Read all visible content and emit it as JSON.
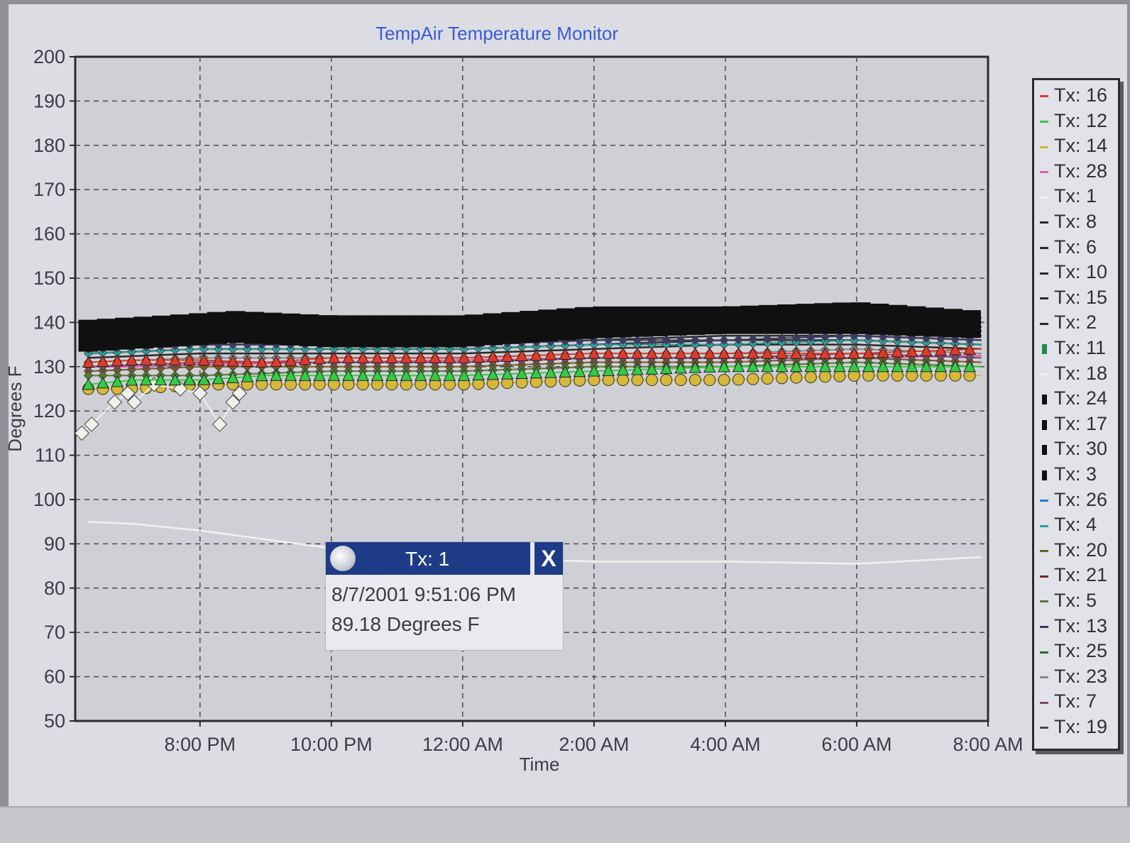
{
  "chart_data": {
    "type": "scatter",
    "title": "TempAir Temperature Monitor",
    "xlabel": "Time",
    "ylabel": "Degrees F",
    "x_ticks": [
      "8:00 PM",
      "10:00 PM",
      "12:00 AM",
      "2:00 AM",
      "4:00 AM",
      "6:00 AM",
      "8:00 AM"
    ],
    "x_range_hours": [
      18.1,
      32.0
    ],
    "y_ticks": [
      200,
      190,
      180,
      170,
      160,
      150,
      140,
      130,
      120,
      110,
      100,
      90,
      80,
      70,
      60,
      50
    ],
    "ylim": [
      50,
      200
    ],
    "grid": true,
    "legend_position": "right",
    "series": [
      {
        "name": "Tx: 16",
        "color": "#e03a2a",
        "marker": "triangle",
        "values": [
          [
            18.3,
            131
          ],
          [
            19.0,
            131.5
          ],
          [
            20.0,
            131.5
          ],
          [
            21.0,
            131
          ],
          [
            22.0,
            132
          ],
          [
            24.0,
            132
          ],
          [
            26.0,
            133
          ],
          [
            28.0,
            133
          ],
          [
            30.0,
            133
          ],
          [
            31.9,
            134
          ]
        ]
      },
      {
        "name": "Tx: 12",
        "color": "#33cc44",
        "marker": "triangle",
        "values": [
          [
            18.3,
            126
          ],
          [
            19.0,
            127
          ],
          [
            20.0,
            127
          ],
          [
            21.0,
            128
          ],
          [
            22.0,
            128
          ],
          [
            24.0,
            128
          ],
          [
            26.0,
            129
          ],
          [
            28.0,
            130
          ],
          [
            30.0,
            130
          ],
          [
            31.9,
            130
          ]
        ]
      },
      {
        "name": "Tx: 14",
        "color": "#d8b838",
        "marker": "circle",
        "values": [
          [
            18.3,
            125
          ],
          [
            19.0,
            125
          ],
          [
            20.0,
            126
          ],
          [
            21.0,
            126
          ],
          [
            22.0,
            126
          ],
          [
            24.0,
            126
          ],
          [
            26.0,
            127
          ],
          [
            28.0,
            127
          ],
          [
            30.0,
            128
          ],
          [
            31.9,
            128
          ]
        ]
      },
      {
        "name": "Tx: 28",
        "color": "#e060b0",
        "marker": "line",
        "values": [
          [
            18.3,
            130
          ],
          [
            19.0,
            130
          ],
          [
            20.0,
            130.5
          ],
          [
            22.0,
            131
          ],
          [
            24.0,
            131.5
          ],
          [
            26.0,
            132
          ],
          [
            28.0,
            132
          ],
          [
            30.0,
            132
          ],
          [
            31.9,
            132.5
          ]
        ]
      },
      {
        "name": "Tx: 1",
        "color": "#f2f2ec",
        "marker": "line",
        "values": [
          [
            18.3,
            95
          ],
          [
            19.0,
            94.5
          ],
          [
            20.0,
            93
          ],
          [
            21.0,
            91
          ],
          [
            22.0,
            89
          ],
          [
            24.0,
            87
          ],
          [
            26.0,
            86
          ],
          [
            28.0,
            86
          ],
          [
            30.0,
            85.5
          ],
          [
            31.9,
            87
          ]
        ]
      },
      {
        "name": "Tx: 8",
        "color": "#2a2a2a",
        "marker": "line",
        "values": [
          [
            18.3,
            136
          ],
          [
            20.0,
            137
          ],
          [
            22.0,
            137
          ],
          [
            24.0,
            137
          ],
          [
            26.0,
            138
          ],
          [
            28.0,
            139
          ],
          [
            30.0,
            139
          ],
          [
            31.9,
            138
          ]
        ]
      },
      {
        "name": "Tx: 6",
        "color": "#2a2a2a",
        "marker": "line",
        "values": [
          [
            18.3,
            135
          ],
          [
            20.0,
            136
          ],
          [
            22.0,
            136
          ],
          [
            24.0,
            136
          ],
          [
            26.0,
            137
          ],
          [
            28.0,
            138
          ],
          [
            30.0,
            138
          ],
          [
            31.9,
            137
          ]
        ]
      },
      {
        "name": "Tx: 10",
        "color": "#2a2a2a",
        "marker": "line",
        "values": [
          [
            18.3,
            134
          ],
          [
            20.0,
            135
          ],
          [
            22.0,
            135
          ],
          [
            24.0,
            135
          ],
          [
            26.0,
            136
          ],
          [
            28.0,
            137
          ],
          [
            30.0,
            137
          ],
          [
            31.9,
            136
          ]
        ]
      },
      {
        "name": "Tx: 15",
        "color": "#2a2a2a",
        "marker": "line",
        "values": [
          [
            18.3,
            133
          ],
          [
            20.0,
            134
          ],
          [
            22.0,
            134
          ],
          [
            24.0,
            134
          ],
          [
            26.0,
            135
          ],
          [
            28.0,
            136
          ],
          [
            30.0,
            136
          ],
          [
            31.9,
            135
          ]
        ]
      },
      {
        "name": "Tx: 2",
        "color": "#2a2a2a",
        "marker": "line",
        "values": [
          [
            18.3,
            132
          ],
          [
            20.0,
            133
          ],
          [
            22.0,
            133
          ],
          [
            24.0,
            133
          ],
          [
            26.0,
            134
          ],
          [
            28.0,
            135
          ],
          [
            30.0,
            135
          ],
          [
            31.9,
            134
          ]
        ]
      },
      {
        "name": "Tx: 11",
        "color": "#1f8a4a",
        "marker": "square",
        "values": [
          [
            18.3,
            138
          ],
          [
            19.0,
            139.5
          ],
          [
            20.0,
            139
          ],
          [
            22.0,
            139
          ],
          [
            24.0,
            139
          ],
          [
            26.0,
            140
          ],
          [
            28.0,
            140
          ],
          [
            30.0,
            140
          ],
          [
            31.9,
            139
          ]
        ]
      },
      {
        "name": "Tx: 18",
        "color": "#f0f0ea",
        "marker": "diamond",
        "values": [
          [
            18.2,
            115
          ],
          [
            18.35,
            117
          ],
          [
            18.7,
            122
          ],
          [
            18.9,
            124
          ],
          [
            19.0,
            122
          ],
          [
            19.3,
            126
          ],
          [
            19.7,
            125
          ],
          [
            20.0,
            124
          ],
          [
            20.3,
            117
          ],
          [
            20.5,
            122
          ],
          [
            20.6,
            124
          ]
        ]
      },
      {
        "name": "Tx: 24",
        "color": "#101010",
        "marker": "square",
        "values": [
          [
            18.3,
            137
          ],
          [
            19.5,
            138
          ],
          [
            20.5,
            139
          ],
          [
            22.0,
            138
          ],
          [
            24.0,
            138
          ],
          [
            26.0,
            140
          ],
          [
            28.0,
            141
          ],
          [
            30.0,
            141
          ],
          [
            31.9,
            140
          ]
        ]
      },
      {
        "name": "Tx: 17",
        "color": "#101010",
        "marker": "square",
        "values": [
          [
            18.3,
            135
          ],
          [
            19.5,
            136
          ],
          [
            20.5,
            137
          ],
          [
            22.0,
            136
          ],
          [
            24.0,
            136
          ],
          [
            26.0,
            138
          ],
          [
            28.0,
            139
          ],
          [
            30.0,
            139
          ],
          [
            31.9,
            138
          ]
        ]
      },
      {
        "name": "Tx: 30",
        "color": "#101010",
        "marker": "square",
        "values": [
          [
            18.3,
            139
          ],
          [
            19.5,
            140
          ],
          [
            20.5,
            141
          ],
          [
            22.0,
            140
          ],
          [
            24.0,
            140
          ],
          [
            26.0,
            142
          ],
          [
            28.0,
            142
          ],
          [
            30.0,
            143
          ],
          [
            31.9,
            141
          ]
        ]
      },
      {
        "name": "Tx: 3",
        "color": "#101010",
        "marker": "square",
        "values": [
          [
            18.3,
            136
          ],
          [
            19.5,
            137
          ],
          [
            20.5,
            138
          ],
          [
            22.0,
            137
          ],
          [
            24.0,
            137
          ],
          [
            26.0,
            139
          ],
          [
            28.0,
            140
          ],
          [
            30.0,
            140
          ],
          [
            31.9,
            139
          ]
        ]
      },
      {
        "name": "Tx: 26",
        "color": "#2a78d8",
        "marker": "diamond",
        "values": [
          [
            26.0,
            139
          ],
          [
            27.0,
            139
          ],
          [
            28.0,
            139
          ],
          [
            29.0,
            139.5
          ],
          [
            30.0,
            139.5
          ],
          [
            31.0,
            140
          ]
        ]
      },
      {
        "name": "Tx: 4",
        "color": "#2aa0a0",
        "marker": "diamond",
        "values": [
          [
            18.3,
            133
          ],
          [
            20.0,
            134
          ],
          [
            22.0,
            134
          ],
          [
            24.0,
            134
          ],
          [
            26.0,
            135
          ],
          [
            28.0,
            135
          ],
          [
            30.0,
            136
          ],
          [
            31.9,
            135
          ]
        ]
      },
      {
        "name": "Tx: 20",
        "color": "#7a5a20",
        "marker": "diamond",
        "values": [
          [
            18.3,
            129
          ],
          [
            20.0,
            130
          ],
          [
            22.0,
            130
          ],
          [
            24.0,
            130
          ],
          [
            26.0,
            131
          ],
          [
            28.0,
            131
          ],
          [
            30.0,
            132
          ],
          [
            31.9,
            131
          ]
        ]
      },
      {
        "name": "Tx: 21",
        "color": "#6a2a30",
        "marker": "diamond",
        "values": [
          [
            18.3,
            137
          ],
          [
            20.0,
            138
          ],
          [
            22.0,
            137
          ],
          [
            24.0,
            137
          ],
          [
            26.0,
            139
          ],
          [
            28.0,
            139
          ],
          [
            30.0,
            139
          ],
          [
            31.9,
            139
          ]
        ]
      },
      {
        "name": "Tx: 5",
        "color": "#5a7a30",
        "marker": "diamond",
        "values": [
          [
            18.3,
            128
          ],
          [
            20.0,
            128
          ],
          [
            22.0,
            129
          ],
          [
            24.0,
            129
          ],
          [
            26.0,
            130
          ],
          [
            28.0,
            130
          ],
          [
            30.0,
            131
          ],
          [
            31.9,
            130
          ]
        ]
      },
      {
        "name": "Tx: 13",
        "color": "#3a3a6a",
        "marker": "diamond",
        "values": [
          [
            18.3,
            134
          ],
          [
            20.0,
            135
          ],
          [
            22.0,
            135
          ],
          [
            24.0,
            135
          ],
          [
            26.0,
            136
          ],
          [
            28.0,
            136
          ],
          [
            30.0,
            137
          ],
          [
            31.9,
            136
          ]
        ]
      },
      {
        "name": "Tx: 25",
        "color": "#2a6a2a",
        "marker": "diamond",
        "values": [
          [
            18.3,
            139
          ],
          [
            19.0,
            140
          ],
          [
            20.0,
            140
          ],
          [
            22.0,
            140
          ],
          [
            24.0,
            140
          ],
          [
            26.0,
            141
          ],
          [
            28.0,
            141
          ],
          [
            30.0,
            141
          ],
          [
            31.9,
            140
          ]
        ]
      },
      {
        "name": "Tx: 23",
        "color": "#888888",
        "marker": "diamond",
        "values": [
          [
            18.3,
            131
          ],
          [
            20.0,
            132
          ],
          [
            22.0,
            132
          ],
          [
            24.0,
            132
          ],
          [
            26.0,
            133
          ],
          [
            28.0,
            133
          ],
          [
            30.0,
            134
          ],
          [
            31.9,
            133
          ]
        ]
      },
      {
        "name": "Tx: 7",
        "color": "#7a4a6a",
        "marker": "diamond",
        "values": [
          [
            18.3,
            130
          ],
          [
            20.0,
            131
          ],
          [
            22.0,
            131
          ],
          [
            24.0,
            131
          ],
          [
            26.0,
            132
          ],
          [
            28.0,
            132
          ],
          [
            30.0,
            133
          ],
          [
            31.9,
            132
          ]
        ]
      },
      {
        "name": "Tx: 19",
        "color": "#4a4a4a",
        "marker": "diamond",
        "values": [
          [
            18.3,
            138
          ],
          [
            20.0,
            138
          ],
          [
            22.0,
            138
          ],
          [
            24.0,
            138
          ],
          [
            26.0,
            139
          ],
          [
            28.0,
            140
          ],
          [
            30.0,
            140
          ],
          [
            31.9,
            139
          ]
        ]
      }
    ]
  },
  "tooltip": {
    "title": "Tx: 1",
    "close_label": "X",
    "timestamp": "8/7/2001 9:51:06 PM",
    "value": "89.18 Degrees F"
  }
}
